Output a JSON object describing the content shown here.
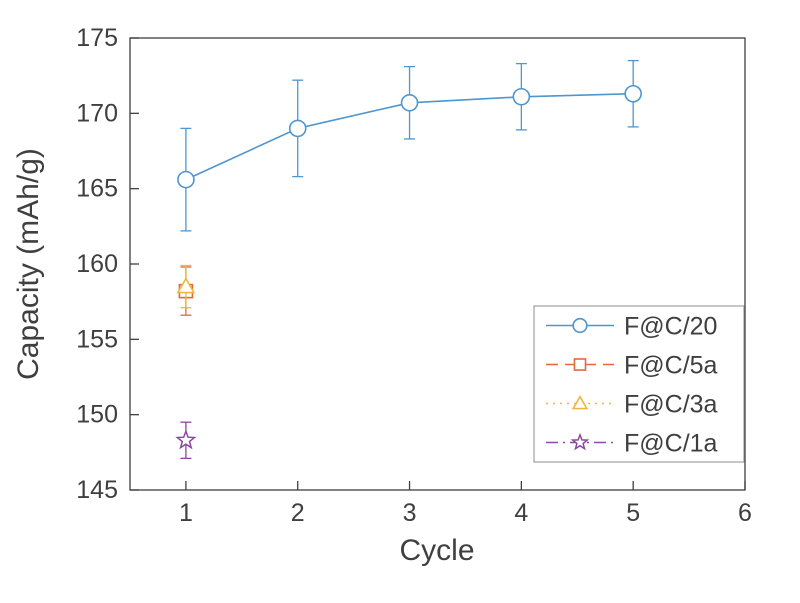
{
  "chart_data": {
    "type": "line",
    "title": "",
    "xlabel": "Cycle",
    "ylabel": "Capacity (mAh/g)",
    "xlim": [
      0.5,
      6
    ],
    "ylim": [
      145,
      175
    ],
    "xtick_labels": [
      "1",
      "2",
      "3",
      "4",
      "5",
      "6"
    ],
    "xtick_values": [
      1,
      2,
      3,
      4,
      5,
      6
    ],
    "ytick_labels": [
      "145",
      "150",
      "155",
      "160",
      "165",
      "170",
      "175"
    ],
    "ytick_values": [
      145,
      150,
      155,
      160,
      165,
      170,
      175
    ],
    "grid": false,
    "legend_position": "southeast",
    "axis_color": "#3f3f3f",
    "series": [
      {
        "name": "F@C/20",
        "color": "#4e96ce",
        "marker": "circle",
        "linestyle": "solid",
        "x": [
          1,
          2,
          3,
          4,
          5
        ],
        "y": [
          165.6,
          169.0,
          170.7,
          171.1,
          171.3
        ],
        "yerr": [
          3.4,
          3.2,
          2.4,
          2.2,
          2.2
        ]
      },
      {
        "name": "F@C/5a",
        "color": "#dd6b3d",
        "marker": "square",
        "linestyle": "dashed",
        "x": [
          1
        ],
        "y": [
          158.2
        ],
        "yerr": [
          1.6
        ]
      },
      {
        "name": "F@C/3a",
        "color": "#efb73e",
        "marker": "triangle",
        "linestyle": "dotted",
        "x": [
          1
        ],
        "y": [
          158.5
        ],
        "yerr": [
          1.4
        ]
      },
      {
        "name": "F@C/1a",
        "color": "#8a4a9c",
        "marker": "star",
        "linestyle": "dashdot",
        "x": [
          1
        ],
        "y": [
          148.3
        ],
        "yerr": [
          1.2
        ]
      }
    ]
  }
}
